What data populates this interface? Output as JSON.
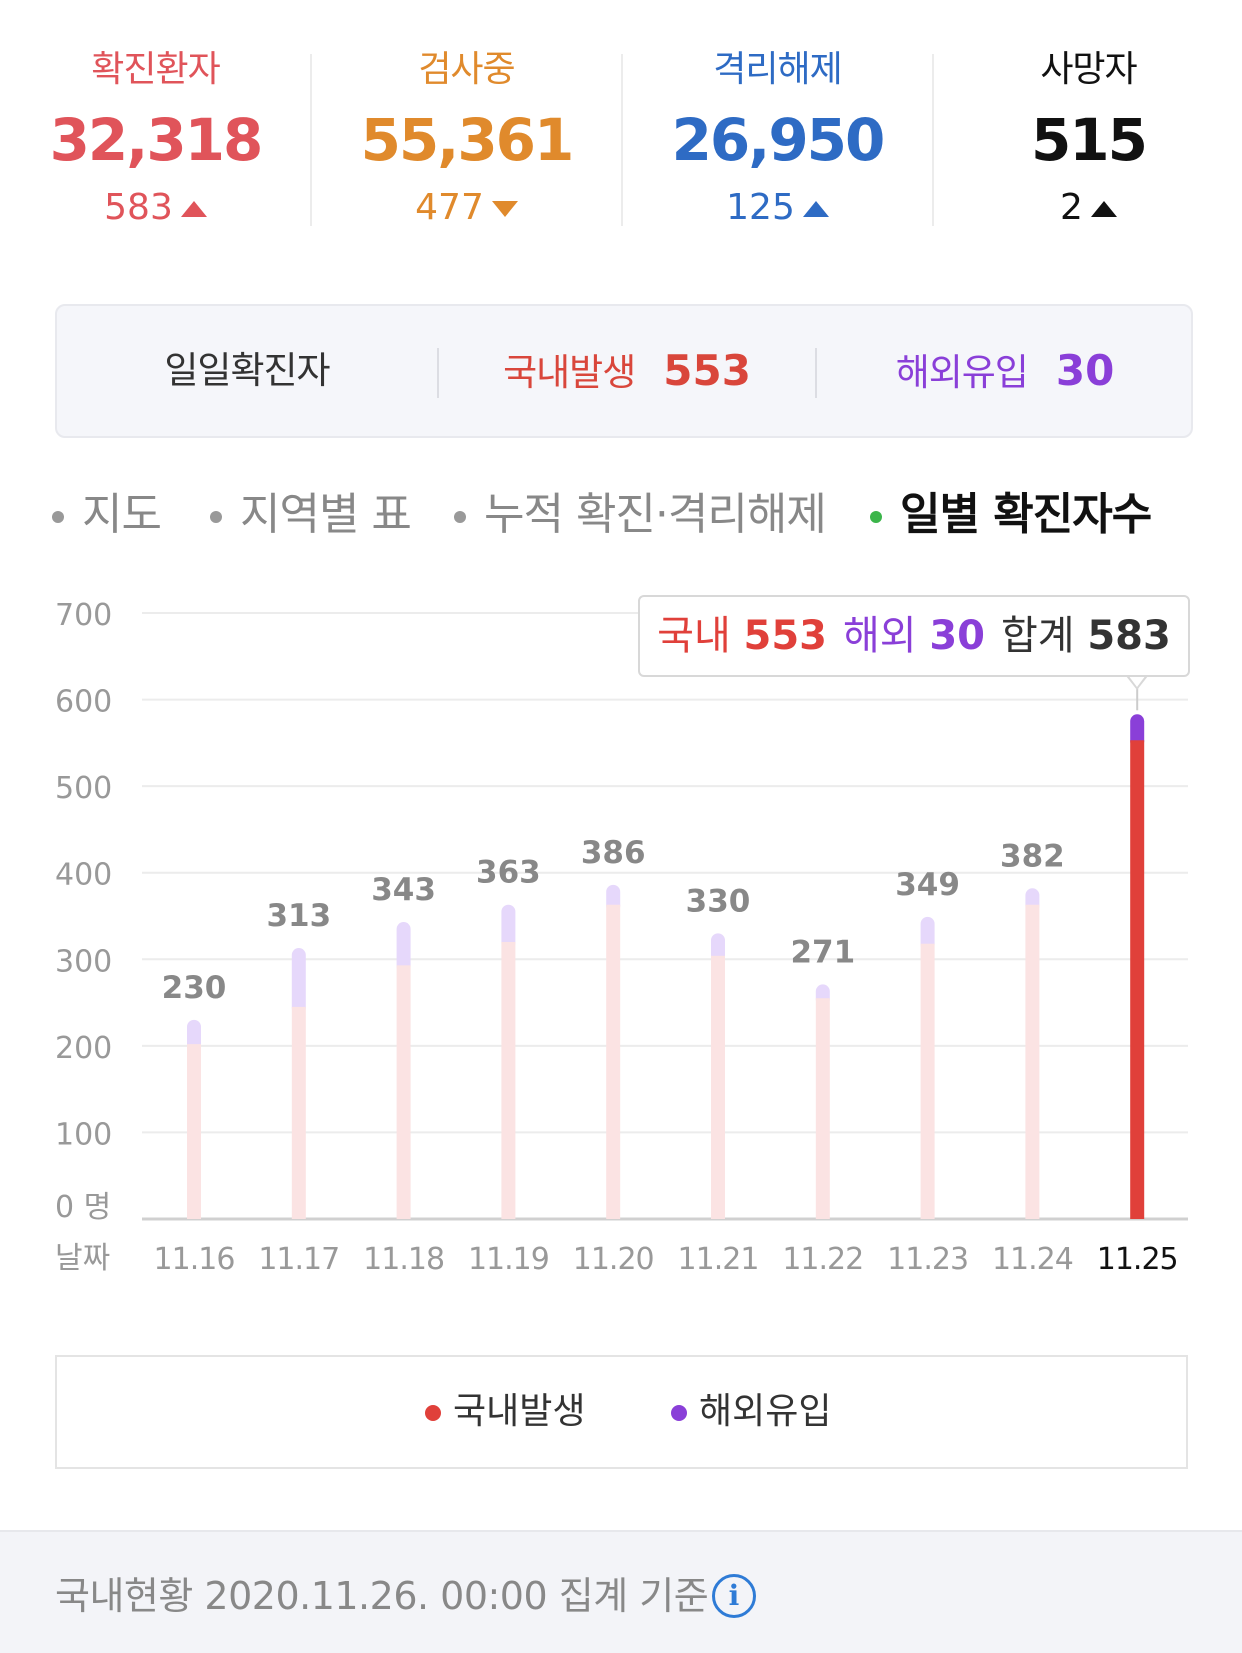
{
  "stats": [
    {
      "label": "확진환자",
      "value": "32,318",
      "delta": "583",
      "direction": "up",
      "color": "#e0545a"
    },
    {
      "label": "검사중",
      "value": "55,361",
      "delta": "477",
      "direction": "down",
      "color": "#e08a2c"
    },
    {
      "label": "격리해제",
      "value": "26,950",
      "delta": "125",
      "direction": "up",
      "color": "#2e6bc4"
    },
    {
      "label": "사망자",
      "value": "515",
      "delta": "2",
      "direction": "up",
      "color": "#111111"
    }
  ],
  "daily": {
    "title": "일일확진자",
    "domestic_label": "국내발생",
    "domestic_value": "553",
    "overseas_label": "해외유입",
    "overseas_value": "30"
  },
  "tabs": [
    {
      "label": "지도",
      "active": false
    },
    {
      "label": "지역별 표",
      "active": false
    },
    {
      "label": "누적 확진·격리해제",
      "active": false
    },
    {
      "label": "일별 확진자수",
      "active": true
    }
  ],
  "tooltip": {
    "domestic_label": "국내",
    "domestic_value": "553",
    "overseas_label": "해외",
    "overseas_value": "30",
    "total_label": "합계",
    "total_value": "583"
  },
  "chart_data": {
    "type": "bar",
    "stacked": true,
    "ylim": [
      0,
      700
    ],
    "yticks": [
      0,
      100,
      200,
      300,
      400,
      500,
      600,
      700
    ],
    "ytick_labels": [
      "0 명",
      "100",
      "200",
      "300",
      "400",
      "500",
      "600",
      "700"
    ],
    "x_axis_label": "날짜",
    "categories": [
      "11.16",
      "11.17",
      "11.18",
      "11.19",
      "11.20",
      "11.21",
      "11.22",
      "11.23",
      "11.24",
      "11.25"
    ],
    "totals": [
      230,
      313,
      343,
      363,
      386,
      330,
      271,
      349,
      382,
      583
    ],
    "series": [
      {
        "name": "국내발생",
        "values": [
          202,
          245,
          293,
          320,
          363,
          304,
          255,
          318,
          363,
          553
        ],
        "color": "#e0403a",
        "faded_color": "#fbe3e3"
      },
      {
        "name": "해외유입",
        "values": [
          28,
          68,
          50,
          43,
          23,
          26,
          16,
          31,
          19,
          30
        ],
        "color": "#8a3fd8",
        "faded_color": "#e6d8fb"
      }
    ],
    "highlight_index": 9,
    "grid": true
  },
  "legend": [
    {
      "label": "국내발생",
      "color": "#e0403a"
    },
    {
      "label": "해외유입",
      "color": "#8a3fd8"
    }
  ],
  "footer": {
    "note": "국내현황 2020.11.26. 00:00 집계 기준",
    "info_icon": "info-icon"
  }
}
